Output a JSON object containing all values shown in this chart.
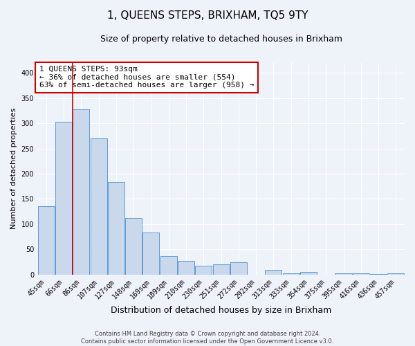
{
  "title": "1, QUEENS STEPS, BRIXHAM, TQ5 9TY",
  "subtitle": "Size of property relative to detached houses in Brixham",
  "xlabel": "Distribution of detached houses by size in Brixham",
  "ylabel": "Number of detached properties",
  "categories": [
    "45sqm",
    "66sqm",
    "86sqm",
    "107sqm",
    "127sqm",
    "148sqm",
    "169sqm",
    "189sqm",
    "210sqm",
    "230sqm",
    "251sqm",
    "272sqm",
    "292sqm",
    "313sqm",
    "333sqm",
    "354sqm",
    "375sqm",
    "395sqm",
    "416sqm",
    "436sqm",
    "457sqm"
  ],
  "values": [
    135,
    303,
    328,
    270,
    183,
    112,
    83,
    37,
    27,
    17,
    20,
    25,
    0,
    10,
    3,
    5,
    0,
    2,
    2,
    1,
    3
  ],
  "bar_color": "#c9d9eb",
  "bar_edge_color": "#5b9bd5",
  "bar_width": 0.95,
  "vline_position": 1.5,
  "vline_color": "#cc0000",
  "ylim": [
    0,
    420
  ],
  "yticks": [
    0,
    50,
    100,
    150,
    200,
    250,
    300,
    350,
    400
  ],
  "annotation_title": "1 QUEENS STEPS: 93sqm",
  "annotation_line1": "← 36% of detached houses are smaller (554)",
  "annotation_line2": "63% of semi-detached houses are larger (958) →",
  "annotation_box_color": "#ffffff",
  "annotation_box_edge_color": "#cc0000",
  "footer_line1": "Contains HM Land Registry data © Crown copyright and database right 2024.",
  "footer_line2": "Contains public sector information licensed under the Open Government Licence v3.0.",
  "background_color": "#eef2f9",
  "grid_color": "#ffffff",
  "title_fontsize": 11,
  "subtitle_fontsize": 9,
  "ylabel_fontsize": 8,
  "xlabel_fontsize": 9,
  "tick_fontsize": 7,
  "annotation_fontsize": 8,
  "footer_fontsize": 6
}
